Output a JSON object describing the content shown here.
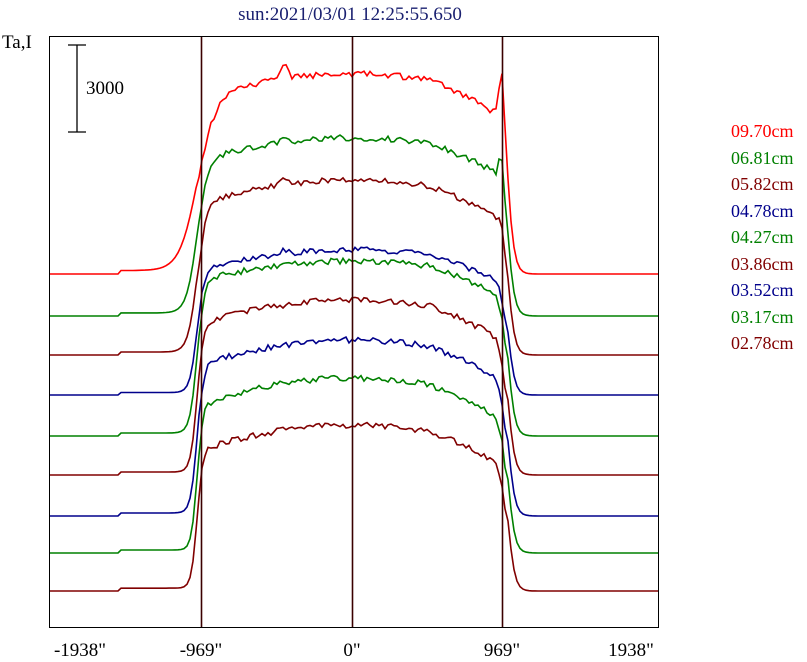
{
  "title": "sun:2021/03/01 12:25:55.650",
  "ylabel": "Ta,I",
  "scale_bar": {
    "label": "3000",
    "value": 3000
  },
  "colors": {
    "red": "#ff0000",
    "green": "#008000",
    "maroon": "#800000",
    "navy": "#00008b",
    "axis": "#000000",
    "line": "#3a0000"
  },
  "chart_data": {
    "type": "line",
    "title": "sun:2021/03/01 12:25:55.650",
    "ylabel": "Ta,I",
    "xlabel": "",
    "xlim": [
      -2000,
      1938
    ],
    "x_ticks": [
      -1938,
      -969,
      0,
      969,
      1938
    ],
    "x_tick_labels": [
      "-1938\"",
      "-969\"",
      "0\"",
      "969\"",
      "1938\""
    ],
    "vertical_lines": [
      -969,
      0,
      969
    ],
    "units_per_scale_bar": 3000,
    "note_offsets_baseline_order": "top to bottom",
    "series": [
      {
        "name": "09.70cm",
        "color": "#ff0000",
        "baseline_y": 274,
        "limb_peak": 200,
        "plateau": 175,
        "spike_left": 17,
        "spike_right": 70,
        "edge_width": 25
      },
      {
        "name": "06.81cm",
        "color": "#008000",
        "baseline_y": 316,
        "limb_peak": 178,
        "plateau": 156,
        "spike_left": 8,
        "spike_right": 40,
        "edge_width": 15
      },
      {
        "name": "05.82cm",
        "color": "#800000",
        "baseline_y": 355,
        "limb_peak": 175,
        "plateau": 150,
        "spike_left": 5,
        "spike_right": 15,
        "edge_width": 13
      },
      {
        "name": "04.78cm",
        "color": "#00008b",
        "baseline_y": 395,
        "limb_peak": 145,
        "plateau": 125,
        "spike_left": 5,
        "spike_right": 0,
        "edge_width": 10
      },
      {
        "name": "04.27cm",
        "color": "#008000",
        "baseline_y": 436,
        "limb_peak": 175,
        "plateau": 155,
        "spike_left": 3,
        "spike_right": 0,
        "edge_width": 10
      },
      {
        "name": "03.86cm",
        "color": "#800000",
        "baseline_y": 475,
        "limb_peak": 175,
        "plateau": 150,
        "spike_left": 0,
        "spike_right": 0,
        "edge_width": 9
      },
      {
        "name": "03.52cm",
        "color": "#00008b",
        "baseline_y": 516,
        "limb_peak": 176,
        "plateau": 150,
        "spike_left": 0,
        "spike_right": 0,
        "edge_width": 9
      },
      {
        "name": "03.17cm",
        "color": "#008000",
        "baseline_y": 553,
        "limb_peak": 175,
        "plateau": 147,
        "spike_left": 0,
        "spike_right": 0,
        "edge_width": 8
      },
      {
        "name": "02.78cm",
        "color": "#800000",
        "baseline_y": 591,
        "limb_peak": 166,
        "plateau": 140,
        "spike_left": 0,
        "spike_right": 0,
        "edge_width": 8
      }
    ]
  }
}
